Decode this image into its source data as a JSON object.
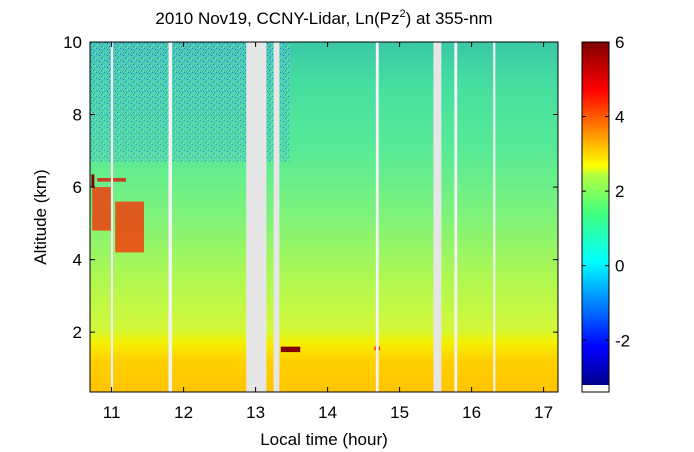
{
  "chart_data": {
    "type": "heatmap",
    "title_main": "2010 Nov19, CCNY-Lidar, Ln(Pz",
    "title_sup": "2",
    "title_tail": ") at 355-nm",
    "xlabel": "Local time (hour)",
    "ylabel": "Altitude (km)",
    "xlim": [
      10.7,
      17.2
    ],
    "ylim": [
      0.35,
      10
    ],
    "x_ticks": [
      11,
      12,
      13,
      14,
      15,
      16,
      17
    ],
    "x_tick_labels": [
      "11",
      "12",
      "13",
      "14",
      "15",
      "16",
      "17"
    ],
    "y_ticks": [
      2,
      4,
      6,
      8,
      10
    ],
    "y_tick_labels": [
      "2",
      "4",
      "6",
      "8",
      "10"
    ],
    "colorbar": {
      "colormap": "jet",
      "range": [
        -3.2,
        6
      ],
      "ticks": [
        -2,
        0,
        2,
        4,
        6
      ],
      "tick_labels": [
        "-2",
        "0",
        "2",
        "4",
        "6"
      ]
    },
    "no_data_gaps": [
      [
        10.99,
        11.02
      ],
      [
        11.79,
        11.84
      ],
      [
        12.87,
        13.15
      ],
      [
        13.25,
        13.33
      ],
      [
        14.67,
        14.71
      ],
      [
        15.47,
        15.58
      ],
      [
        15.76,
        15.8
      ],
      [
        16.3,
        16.33
      ]
    ],
    "cloud_features": [
      {
        "x": [
          10.72,
          10.76
        ],
        "y": [
          6.0,
          6.35
        ],
        "value": 6
      },
      {
        "x": [
          10.73,
          11.0
        ],
        "y": [
          4.8,
          6.0
        ],
        "value": 4.5
      },
      {
        "x": [
          11.05,
          11.45
        ],
        "y": [
          4.2,
          5.6
        ],
        "value": 4.5
      },
      {
        "x": [
          10.8,
          11.2
        ],
        "y": [
          6.15,
          6.25
        ],
        "value": 5
      },
      {
        "x": [
          13.35,
          13.62
        ],
        "y": [
          1.45,
          1.6
        ],
        "value": 6
      },
      {
        "x": [
          14.65,
          14.73
        ],
        "y": [
          1.5,
          1.6
        ],
        "value": 5
      }
    ]
  }
}
